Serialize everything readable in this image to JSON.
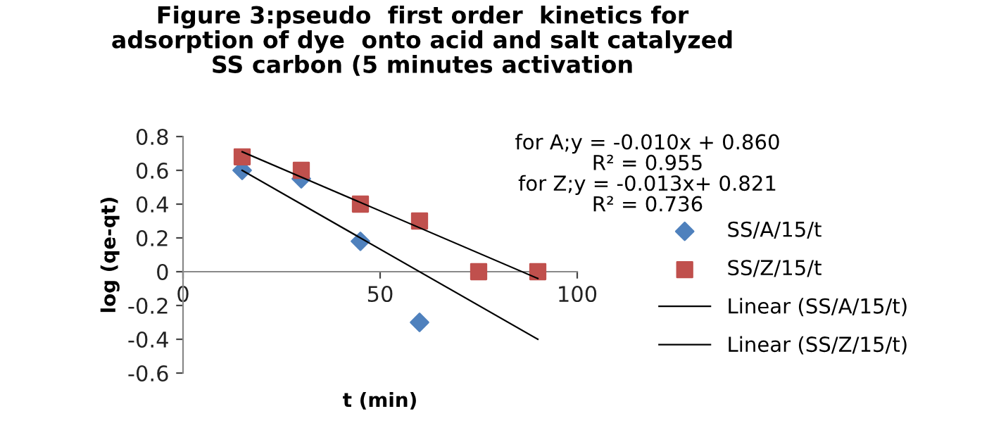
{
  "chart_data": {
    "type": "scatter",
    "title": "Figure 3:pseudo  first order  kinetics for\nadsorption of dye  onto acid and salt catalyzed\nSS carbon (5 minutes activation",
    "xlabel": "t (min)",
    "ylabel": "log (qe-qt)",
    "xlim": [
      0,
      100
    ],
    "xticks": [
      0,
      50,
      100
    ],
    "ylim": [
      -0.6,
      0.8
    ],
    "yticks": [
      -0.6,
      -0.4,
      -0.2,
      0,
      0.2,
      0.4,
      0.6,
      0.8
    ],
    "grid": false,
    "legend": "right",
    "series": [
      {
        "name": "SS/A/15/t",
        "marker": "diamond",
        "color": "#4f81bd",
        "x": [
          15,
          30,
          45,
          60
        ],
        "values": [
          0.6,
          0.55,
          0.18,
          -0.3
        ]
      },
      {
        "name": "SS/Z/15/t",
        "marker": "square",
        "color": "#c0504d",
        "x": [
          15,
          30,
          45,
          60,
          75,
          90
        ],
        "values": [
          0.68,
          0.6,
          0.4,
          0.3,
          0,
          0
        ]
      },
      {
        "name": "Linear (SS/A/15/t)",
        "type": "line",
        "color": "#000000",
        "line_style": "solid",
        "x": [
          15,
          90
        ],
        "values": [
          0.6,
          -0.4
        ]
      },
      {
        "name": "Linear (SS/Z/15/t)",
        "type": "line",
        "color": "#000000",
        "line_style": "solid",
        "x": [
          15,
          90
        ],
        "values": [
          0.71,
          -0.04
        ]
      }
    ],
    "annotations": [
      "for A;y = -0.010x + 0.860\nR² = 0.955\nfor Z;y = -0.013x+ 0.821\nR² = 0.736"
    ]
  }
}
